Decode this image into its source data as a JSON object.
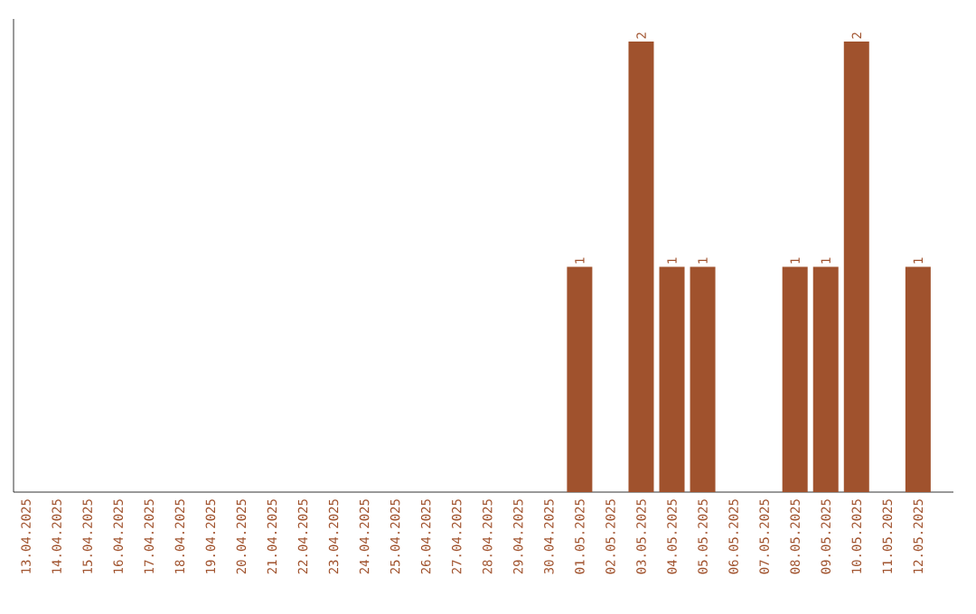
{
  "chart_data": {
    "type": "bar",
    "color": "#a0522d",
    "categories": [
      "13.04.2025",
      "14.04.2025",
      "15.04.2025",
      "16.04.2025",
      "17.04.2025",
      "18.04.2025",
      "19.04.2025",
      "20.04.2025",
      "21.04.2025",
      "22.04.2025",
      "23.04.2025",
      "24.04.2025",
      "25.04.2025",
      "26.04.2025",
      "27.04.2025",
      "28.04.2025",
      "29.04.2025",
      "30.04.2025",
      "01.05.2025",
      "02.05.2025",
      "03.05.2025",
      "04.05.2025",
      "05.05.2025",
      "06.05.2025",
      "07.05.2025",
      "08.05.2025",
      "09.05.2025",
      "10.05.2025",
      "11.05.2025",
      "12.05.2025"
    ],
    "values": [
      null,
      null,
      null,
      null,
      null,
      null,
      null,
      null,
      null,
      null,
      null,
      null,
      null,
      null,
      null,
      null,
      null,
      null,
      1,
      null,
      2,
      1,
      1,
      null,
      null,
      1,
      1,
      2,
      null,
      1
    ],
    "value_labels": [
      null,
      null,
      null,
      null,
      null,
      null,
      null,
      null,
      null,
      null,
      null,
      null,
      null,
      null,
      null,
      null,
      null,
      null,
      "1",
      null,
      "2",
      "1",
      "1",
      null,
      null,
      "1",
      "1",
      "2",
      null,
      "1"
    ],
    "grid": false,
    "tick_labels": "x"
  }
}
